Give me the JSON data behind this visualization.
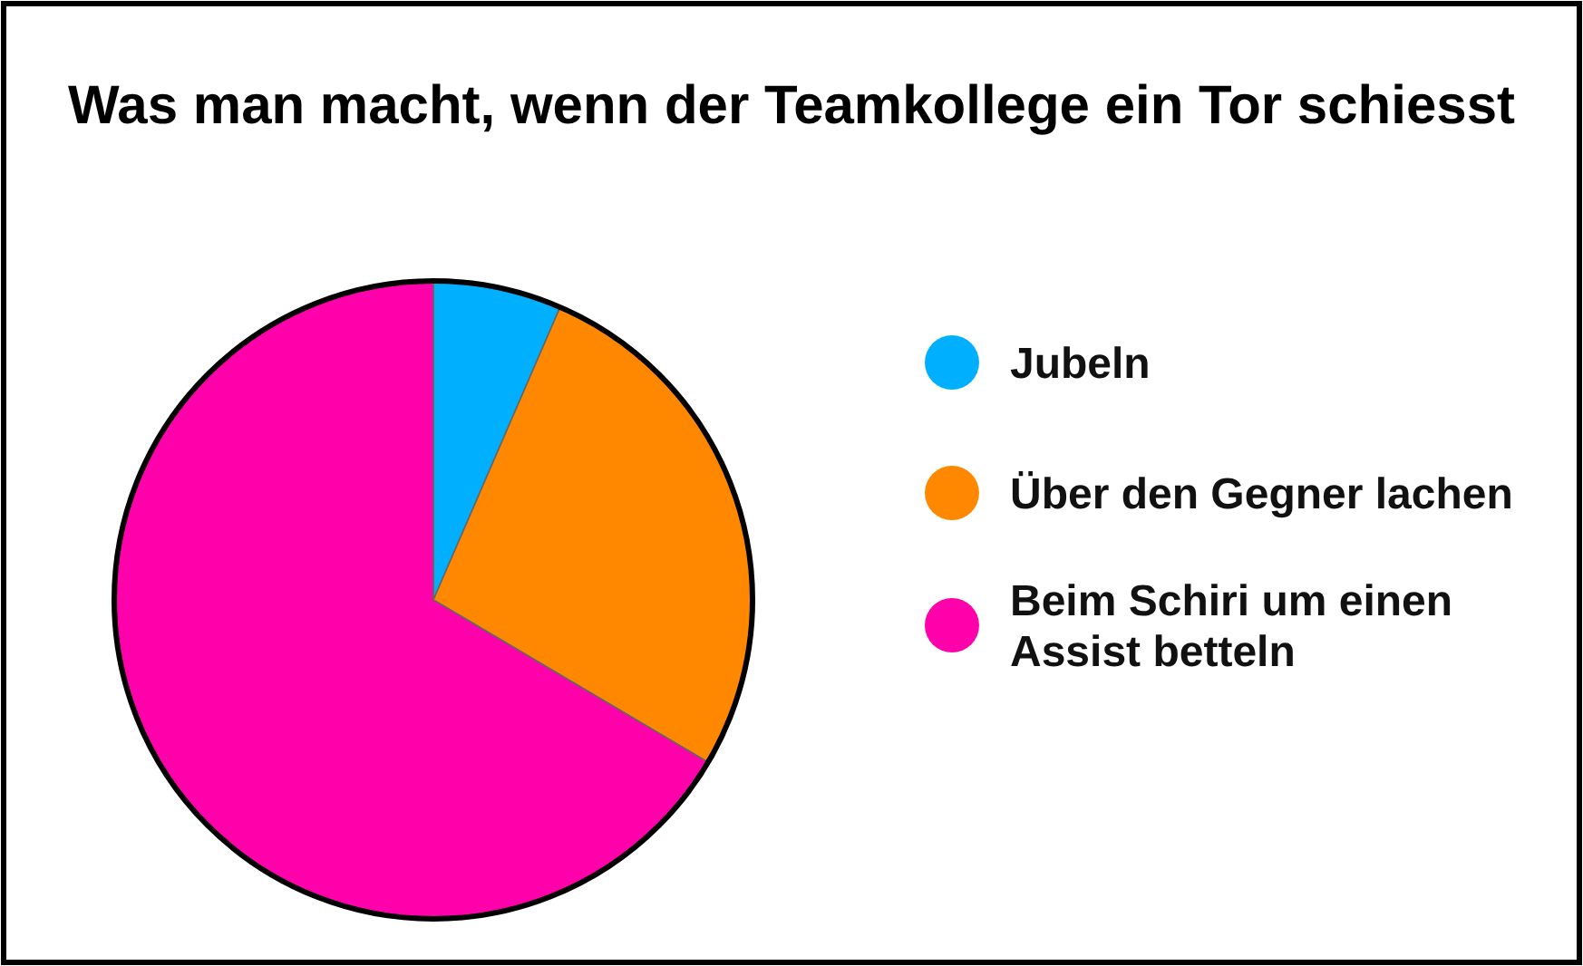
{
  "chart_data": {
    "type": "pie",
    "title": "Was man macht, wenn der Teamkollege ein Tor schiesst",
    "categories": [
      "Jubeln",
      "Über den Gegner lachen",
      "Beim Schiri um einen Assist betteln"
    ],
    "values": [
      6.5,
      27,
      66.5
    ],
    "colors": [
      "#00b0ff",
      "#ff8800",
      "#ff00aa"
    ],
    "legend": "right"
  }
}
